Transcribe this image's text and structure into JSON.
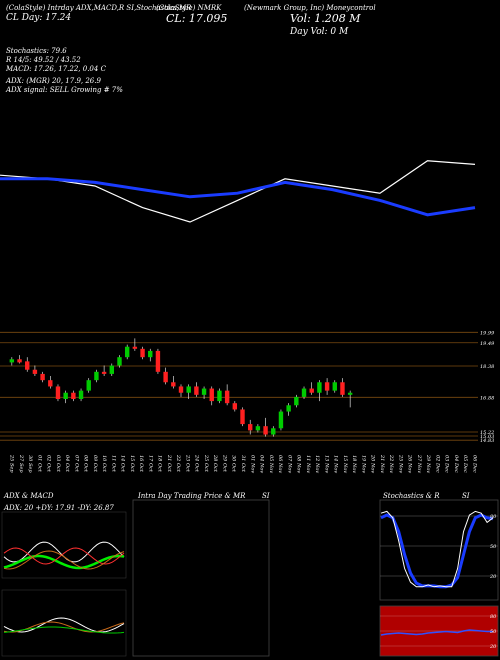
{
  "header": {
    "left_title": "(ColaStyle) Intrday ADX,MACD,R SI,Stochastics,MR",
    "left_sub": "CL Day: 17.24",
    "center_title": "(ColaStyle) NMRK",
    "center_sub": "CL: 17.095",
    "right_title": "(Newmark Group, Inc) Moneycontrol",
    "vol": "Vol: 1.208  M",
    "day_vol": "Day Vol: 0  M"
  },
  "indicators": {
    "stochastics": "Stochastics: 79.6",
    "rsi": "R 14/5: 49.52 / 43.52",
    "macd": "MACD: 17.26, 17.22, 0.04  C",
    "adx": "ADX:              (MGR) 20, 17.9, 26.9",
    "adx_signal": "ADX  signal: SELL Growing # 7%"
  },
  "price_axis": [
    "19.99",
    "19.49",
    "18.38",
    "16.88",
    "15.22",
    "15.03",
    "14.83"
  ],
  "date_labels": [
    "25 Sep",
    "27 Sep",
    "30 Sep",
    "01 Oct",
    "02 Oct",
    "03 Oct",
    "04 Oct",
    "07 Oct",
    "08 Oct",
    "09 Oct",
    "10 Oct",
    "11 Oct",
    "14 Oct",
    "15 Oct",
    "16 Oct",
    "17 Oct",
    "18 Oct",
    "21 Oct",
    "22 Oct",
    "23 Oct",
    "24 Oct",
    "25 Oct",
    "28 Oct",
    "29 Oct",
    "30 Oct",
    "31 Oct",
    "01 Nov",
    "04 Nov",
    "05 Nov",
    "06 Nov",
    "07 Nov",
    "08 Nov",
    "11 Nov",
    "12 Nov",
    "13 Nov",
    "14 Nov",
    "15 Nov",
    "18 Nov",
    "19 Nov",
    "20 Nov",
    "21 Nov",
    "22 Nov",
    "25 Nov",
    "26 Nov",
    "27 Nov",
    "29 Nov",
    "02 Dec",
    "03 Dec",
    "04 Dec",
    "05 Dec",
    "06 Dec"
  ],
  "panels": {
    "adx_title": "ADX  & MACD",
    "adx_values": "ADX: 20  +DY: 17.91  -DY: 26.87",
    "intraday_title": "Intra  Day Trading Price  & MR",
    "intraday_si": "SI",
    "stoch_title": "Stochastics & R",
    "stoch_si": "SI",
    "stoch_levels": [
      "80",
      "50",
      "20"
    ],
    "rsi_levels": [
      "80",
      "50",
      "20"
    ]
  },
  "colors": {
    "up": "#00cc00",
    "down": "#ff2020",
    "ma": "#1a3cff",
    "rsi_bg": "#b00000",
    "grid": "#7a4a10"
  },
  "chart_data": [
    {
      "type": "line",
      "name": "price_ma_overview",
      "x": [
        0,
        5,
        10,
        15,
        20,
        25,
        30,
        35,
        40,
        45,
        50
      ],
      "series": [
        {
          "values": [
            53,
            52,
            50,
            44,
            40,
            46,
            52,
            50,
            48,
            57,
            56
          ],
          "kind": "price"
        },
        {
          "values": [
            52,
            52,
            51,
            49,
            47,
            48,
            51,
            49,
            46,
            42,
            44
          ],
          "kind": "ma"
        }
      ]
    },
    {
      "type": "candlestick",
      "name": "daily_candles",
      "ylim": [
        14.6,
        20.1
      ],
      "candles": [
        {
          "o": 18.55,
          "h": 18.8,
          "l": 18.4,
          "c": 18.7
        },
        {
          "o": 18.7,
          "h": 18.9,
          "l": 18.5,
          "c": 18.55
        },
        {
          "o": 18.6,
          "h": 18.8,
          "l": 18.1,
          "c": 18.2
        },
        {
          "o": 18.2,
          "h": 18.4,
          "l": 17.9,
          "c": 18.0
        },
        {
          "o": 18.0,
          "h": 18.1,
          "l": 17.6,
          "c": 17.7
        },
        {
          "o": 17.7,
          "h": 17.9,
          "l": 17.3,
          "c": 17.4
        },
        {
          "o": 17.4,
          "h": 17.5,
          "l": 16.7,
          "c": 16.8
        },
        {
          "o": 16.8,
          "h": 17.2,
          "l": 16.6,
          "c": 17.1
        },
        {
          "o": 17.1,
          "h": 17.2,
          "l": 16.7,
          "c": 16.8
        },
        {
          "o": 16.8,
          "h": 17.3,
          "l": 16.7,
          "c": 17.2
        },
        {
          "o": 17.2,
          "h": 17.8,
          "l": 17.1,
          "c": 17.7
        },
        {
          "o": 17.7,
          "h": 18.2,
          "l": 17.6,
          "c": 18.1
        },
        {
          "o": 18.1,
          "h": 18.4,
          "l": 17.9,
          "c": 18.0
        },
        {
          "o": 18.0,
          "h": 18.5,
          "l": 17.9,
          "c": 18.4
        },
        {
          "o": 18.4,
          "h": 18.9,
          "l": 18.3,
          "c": 18.8
        },
        {
          "o": 18.8,
          "h": 19.4,
          "l": 18.7,
          "c": 19.3
        },
        {
          "o": 19.3,
          "h": 19.7,
          "l": 19.1,
          "c": 19.2
        },
        {
          "o": 19.2,
          "h": 19.3,
          "l": 18.7,
          "c": 18.8
        },
        {
          "o": 18.8,
          "h": 19.2,
          "l": 18.6,
          "c": 19.1
        },
        {
          "o": 19.1,
          "h": 19.2,
          "l": 18.0,
          "c": 18.1
        },
        {
          "o": 18.1,
          "h": 18.3,
          "l": 17.5,
          "c": 17.6
        },
        {
          "o": 17.6,
          "h": 17.9,
          "l": 17.3,
          "c": 17.4
        },
        {
          "o": 17.4,
          "h": 17.5,
          "l": 16.9,
          "c": 17.1
        },
        {
          "o": 17.1,
          "h": 17.5,
          "l": 16.8,
          "c": 17.4
        },
        {
          "o": 17.4,
          "h": 17.6,
          "l": 16.9,
          "c": 17.0
        },
        {
          "o": 17.0,
          "h": 17.4,
          "l": 16.8,
          "c": 17.3
        },
        {
          "o": 17.3,
          "h": 17.4,
          "l": 16.5,
          "c": 16.7
        },
        {
          "o": 16.7,
          "h": 17.3,
          "l": 16.6,
          "c": 17.2
        },
        {
          "o": 17.2,
          "h": 17.5,
          "l": 16.5,
          "c": 16.6
        },
        {
          "o": 16.6,
          "h": 16.7,
          "l": 16.2,
          "c": 16.3
        },
        {
          "o": 16.3,
          "h": 16.4,
          "l": 15.5,
          "c": 15.6
        },
        {
          "o": 15.6,
          "h": 15.8,
          "l": 15.1,
          "c": 15.3
        },
        {
          "o": 15.3,
          "h": 15.6,
          "l": 15.2,
          "c": 15.5
        },
        {
          "o": 15.5,
          "h": 15.9,
          "l": 15.0,
          "c": 15.1
        },
        {
          "o": 15.1,
          "h": 15.5,
          "l": 15.0,
          "c": 15.4
        },
        {
          "o": 15.4,
          "h": 16.3,
          "l": 15.3,
          "c": 16.2
        },
        {
          "o": 16.2,
          "h": 16.6,
          "l": 16.0,
          "c": 16.5
        },
        {
          "o": 16.5,
          "h": 17.0,
          "l": 16.4,
          "c": 16.9
        },
        {
          "o": 16.9,
          "h": 17.4,
          "l": 16.8,
          "c": 17.3
        },
        {
          "o": 17.3,
          "h": 17.6,
          "l": 17.0,
          "c": 17.1
        },
        {
          "o": 17.1,
          "h": 17.7,
          "l": 16.7,
          "c": 17.6
        },
        {
          "o": 17.6,
          "h": 17.8,
          "l": 17.0,
          "c": 17.2
        },
        {
          "o": 17.2,
          "h": 17.7,
          "l": 17.1,
          "c": 17.6
        },
        {
          "o": 17.6,
          "h": 17.8,
          "l": 16.9,
          "c": 17.0
        },
        {
          "o": 17.0,
          "h": 17.2,
          "l": 16.4,
          "c": 17.1
        }
      ]
    },
    {
      "type": "line",
      "name": "stochastics_rsi",
      "ylim": [
        0,
        100
      ],
      "series": [
        {
          "values": [
            90,
            92,
            85,
            60,
            30,
            15,
            10,
            10,
            12,
            10,
            11,
            10,
            10,
            30,
            70,
            88,
            92,
            90,
            80,
            85
          ],
          "kind": "stoch_k"
        },
        {
          "values": [
            85,
            88,
            85,
            70,
            45,
            25,
            14,
            11,
            11,
            11,
            10,
            10,
            12,
            20,
            45,
            70,
            85,
            88,
            85,
            84
          ],
          "kind": "stoch_d"
        },
        {
          "values": [
            42,
            44,
            45,
            46,
            45,
            44,
            43,
            44,
            46,
            47,
            48,
            49,
            48,
            47,
            50,
            52,
            51,
            50,
            49,
            49
          ],
          "kind": "rsi"
        }
      ]
    }
  ]
}
